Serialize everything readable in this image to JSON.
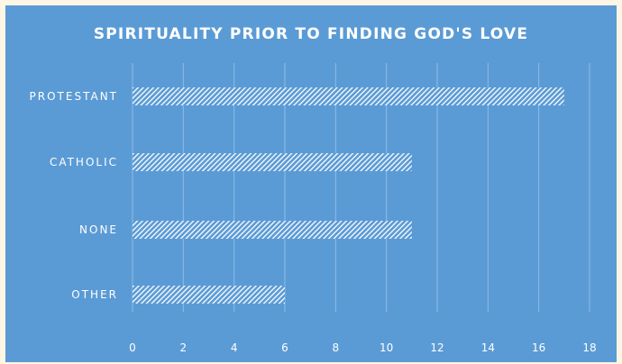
{
  "chart_data": {
    "type": "bar",
    "orientation": "horizontal",
    "title": "SPIRITUALITY PRIOR TO FINDING GOD'S LOVE",
    "categories": [
      "PROTESTANT",
      "CATHOLIC",
      "NONE",
      "OTHER"
    ],
    "values": [
      17,
      11,
      11,
      6
    ],
    "xlabel": "",
    "ylabel": "",
    "xlim": [
      0,
      18
    ],
    "xticks": [
      "0",
      "2",
      "4",
      "6",
      "8",
      "10",
      "12",
      "14",
      "16",
      "18"
    ],
    "grid": "vertical",
    "colors": {
      "background": "#5b9bd5",
      "bar_pattern": "white-diagonal-hatch",
      "text": "#ffffff",
      "gridline": "#8fbce6"
    }
  }
}
